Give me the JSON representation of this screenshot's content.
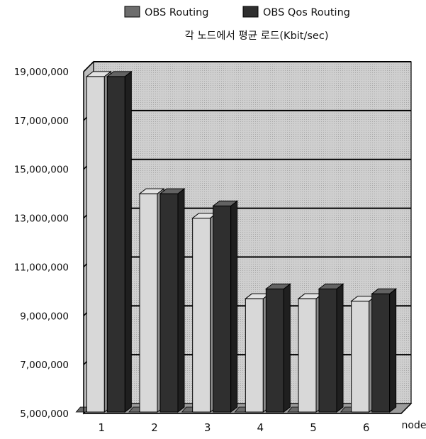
{
  "chart_data": {
    "type": "bar",
    "title": "각 노드에서 평균 로드(Kbit/sec)",
    "xlabel": "node",
    "ylabel": "",
    "categories": [
      "1",
      "2",
      "3",
      "4",
      "5",
      "6"
    ],
    "ylim": [
      5000000,
      19000000
    ],
    "yticks": [
      5000000,
      7000000,
      9000000,
      11000000,
      13000000,
      15000000,
      17000000,
      19000000
    ],
    "ytick_labels": [
      "5,000,000",
      "7,000,000",
      "9,000,000",
      "11,000,000",
      "13,000,000",
      "15,000,000",
      "17,000,000",
      "19,000,000"
    ],
    "grid": true,
    "legend_position": "top",
    "series": [
      {
        "name": "OBS Routing",
        "values": [
          18800000,
          14000000,
          13000000,
          9700000,
          9700000,
          9600000
        ]
      },
      {
        "name": "OBS Qos Routing",
        "values": [
          18800000,
          14000000,
          13500000,
          10100000,
          10100000,
          9900000
        ]
      }
    ],
    "colors": {
      "series_light": "#d8d8d8",
      "series_dark": "#2f2f2f",
      "legend_light": "#6d6d6d",
      "legend_dark": "#2f2f2f",
      "wall": "#d2d2d2",
      "floor": "#9c9c9c"
    }
  }
}
